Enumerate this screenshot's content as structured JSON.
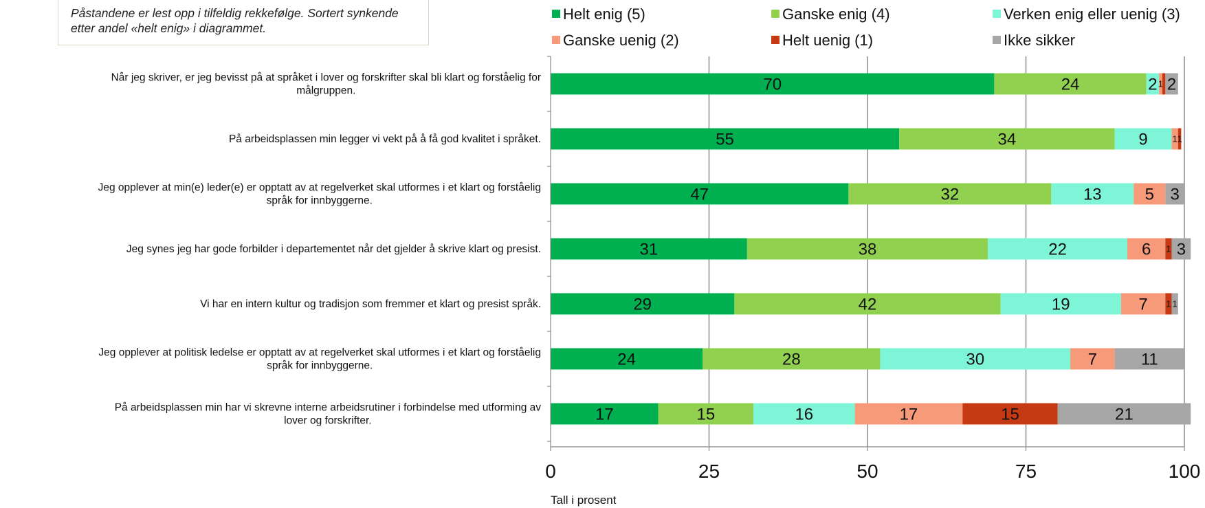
{
  "note": "Påstandene er lest opp i tilfeldig rekkefølge. Sortert synkende etter andel «helt enig» i diagrammet.",
  "chart_data": {
    "type": "bar",
    "orientation": "horizontal",
    "stacked": true,
    "xlabel": "Tall i prosent",
    "xlim": [
      0,
      100
    ],
    "xticks": [
      0,
      25,
      50,
      75,
      100
    ],
    "grid": true,
    "legend_position": "top",
    "categories": [
      [
        "Når jeg skriver, er jeg bevisst på at språket i lover og forskrifter skal bli klart og forståelig for",
        "målgruppen."
      ],
      [
        "På arbeidsplassen min legger vi vekt på å få god kvalitet i språket."
      ],
      [
        "Jeg opplever at min(e) leder(e) er opptatt av at regelverket skal utformes i et klart og forståelig",
        "språk for innbyggerne."
      ],
      [
        "Jeg synes jeg har gode forbilder i departementet når det gjelder å skrive klart og presist."
      ],
      [
        "Vi har en intern kultur og tradisjon som fremmer et klart og presist språk."
      ],
      [
        "Jeg opplever at politisk ledelse er opptatt av at regelverket skal utformes i et klart og forståelig",
        "språk for innbyggerne."
      ],
      [
        "På arbeidsplassen min har vi skrevne interne arbeidsrutiner i forbindelse med utforming av",
        "lover og forskrifter."
      ]
    ],
    "series": [
      {
        "name": "Helt enig (5)",
        "color": "#00b050",
        "values": [
          70,
          55,
          47,
          31,
          29,
          24,
          17
        ]
      },
      {
        "name": "Ganske enig (4)",
        "color": "#92d050",
        "values": [
          24,
          34,
          32,
          38,
          42,
          28,
          15
        ]
      },
      {
        "name": "Verken enig eller uenig (3)",
        "color": "#7ff5d8",
        "values": [
          2,
          9,
          13,
          22,
          19,
          30,
          16
        ]
      },
      {
        "name": "Ganske uenig (2)",
        "color": "#f79a7a",
        "values": [
          0.5,
          1,
          5,
          6,
          7,
          7,
          17
        ]
      },
      {
        "name": "Helt uenig (1)",
        "color": "#c53a12",
        "values": [
          0.5,
          0.5,
          0,
          1,
          1,
          0,
          15
        ]
      },
      {
        "name": "Ikke sikker",
        "color": "#a6a6a6",
        "values": [
          2,
          0,
          3,
          3,
          1,
          11,
          21
        ]
      }
    ],
    "data_labels": [
      [
        "70",
        "24",
        "2",
        "1",
        "",
        "2"
      ],
      [
        "55",
        "34",
        "9",
        "1",
        "1",
        ""
      ],
      [
        "47",
        "32",
        "13",
        "5",
        "",
        "3"
      ],
      [
        "31",
        "38",
        "22",
        "6",
        "1",
        "3"
      ],
      [
        "29",
        "42",
        "19",
        "7",
        "1",
        "1"
      ],
      [
        "24",
        "28",
        "30",
        "7",
        "",
        "11"
      ],
      [
        "17",
        "15",
        "16",
        "17",
        "15",
        "21"
      ]
    ]
  }
}
